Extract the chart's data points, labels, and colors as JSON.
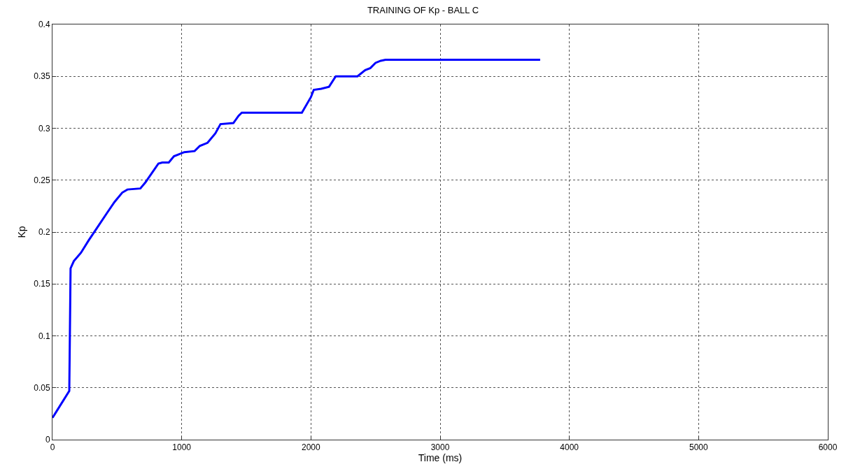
{
  "chart_data": {
    "type": "line",
    "title": "TRAINING OF Kp - BALL C",
    "xlabel": "Time (ms)",
    "ylabel": "Kp",
    "x": [
      0,
      20,
      130,
      135,
      140,
      165,
      220,
      280,
      350,
      420,
      480,
      540,
      580,
      680,
      720,
      770,
      820,
      850,
      900,
      940,
      980,
      1020,
      1100,
      1140,
      1200,
      1260,
      1300,
      1400,
      1440,
      1465,
      1930,
      2000,
      2022,
      2080,
      2140,
      2192,
      2230,
      2360,
      2420,
      2460,
      2500,
      2540,
      2577,
      3774
    ],
    "series": [
      {
        "color": "#0000ff",
        "values": [
          0.021,
          0.025,
          0.047,
          0.105,
          0.165,
          0.172,
          0.18,
          0.192,
          0.205,
          0.218,
          0.229,
          0.238,
          0.241,
          0.242,
          0.248,
          0.257,
          0.266,
          0.267,
          0.267,
          0.273,
          0.275,
          0.277,
          0.278,
          0.283,
          0.286,
          0.295,
          0.304,
          0.305,
          0.312,
          0.315,
          0.315,
          0.33,
          0.337,
          0.338,
          0.34,
          0.35,
          0.35,
          0.35,
          0.356,
          0.358,
          0.363,
          0.365,
          0.366,
          0.366
        ]
      }
    ],
    "xlim": [
      0,
      6000
    ],
    "xticks": [
      0,
      1000,
      2000,
      3000,
      4000,
      5000,
      6000
    ],
    "ylim": [
      0,
      0.4
    ],
    "yticks": [
      0,
      0.05,
      0.1,
      0.15,
      0.2,
      0.25,
      0.3,
      0.35,
      0.4
    ],
    "grid": true,
    "line_style": "solid",
    "marker": "none"
  }
}
